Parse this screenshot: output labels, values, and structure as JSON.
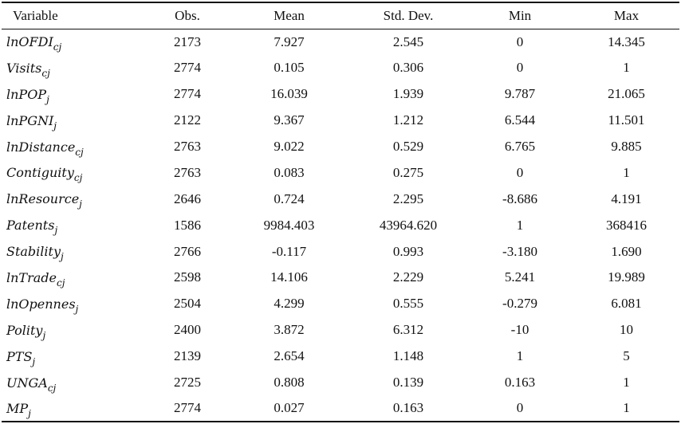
{
  "table": {
    "headers": [
      "Variable",
      "Obs.",
      "Mean",
      "Std. Dev.",
      "Min",
      "Max"
    ],
    "rows": [
      {
        "name": "lnOFDI",
        "sub": "cj",
        "obs": "2173",
        "mean": "7.927",
        "sd": "2.545",
        "min": "0",
        "max": "14.345"
      },
      {
        "name": "Visits",
        "sub": "cj",
        "obs": "2774",
        "mean": "0.105",
        "sd": "0.306",
        "min": "0",
        "max": "1"
      },
      {
        "name": "lnPOP",
        "sub": "j",
        "obs": "2774",
        "mean": "16.039",
        "sd": "1.939",
        "min": "9.787",
        "max": "21.065"
      },
      {
        "name": "lnPGNI",
        "sub": "j",
        "obs": "2122",
        "mean": "9.367",
        "sd": "1.212",
        "min": "6.544",
        "max": "11.501"
      },
      {
        "name": "lnDistance",
        "sub": "cj",
        "obs": "2763",
        "mean": "9.022",
        "sd": "0.529",
        "min": "6.765",
        "max": "9.885"
      },
      {
        "name": "Contiguity",
        "sub": "cj",
        "obs": "2763",
        "mean": "0.083",
        "sd": "0.275",
        "min": "0",
        "max": "1"
      },
      {
        "name": "lnResource",
        "sub": "j",
        "obs": "2646",
        "mean": "0.724",
        "sd": "2.295",
        "min": "-8.686",
        "max": "4.191"
      },
      {
        "name": "Patents",
        "sub": "j",
        "obs": "1586",
        "mean": "9984.403",
        "sd": "43964.620",
        "min": "1",
        "max": "368416"
      },
      {
        "name": "Stability",
        "sub": "j",
        "obs": "2766",
        "mean": "-0.117",
        "sd": "0.993",
        "min": "-3.180",
        "max": "1.690"
      },
      {
        "name": "lnTrade",
        "sub": "cj",
        "obs": "2598",
        "mean": "14.106",
        "sd": "2.229",
        "min": "5.241",
        "max": "19.989"
      },
      {
        "name": "lnOpennes",
        "sub": "j",
        "obs": "2504",
        "mean": "4.299",
        "sd": "0.555",
        "min": "-0.279",
        "max": "6.081"
      },
      {
        "name": "Polity",
        "sub": "j",
        "obs": "2400",
        "mean": "3.872",
        "sd": "6.312",
        "min": "-10",
        "max": "10"
      },
      {
        "name": "PTS",
        "sub": "j",
        "obs": "2139",
        "mean": "2.654",
        "sd": "1.148",
        "min": "1",
        "max": "5"
      },
      {
        "name": "UNGA",
        "sub": "cj",
        "obs": "2725",
        "mean": "0.808",
        "sd": "0.139",
        "min": "0.163",
        "max": "1"
      },
      {
        "name": "MP",
        "sub": "j",
        "obs": "2774",
        "mean": "0.027",
        "sd": "0.163",
        "min": "0",
        "max": "1"
      }
    ]
  }
}
